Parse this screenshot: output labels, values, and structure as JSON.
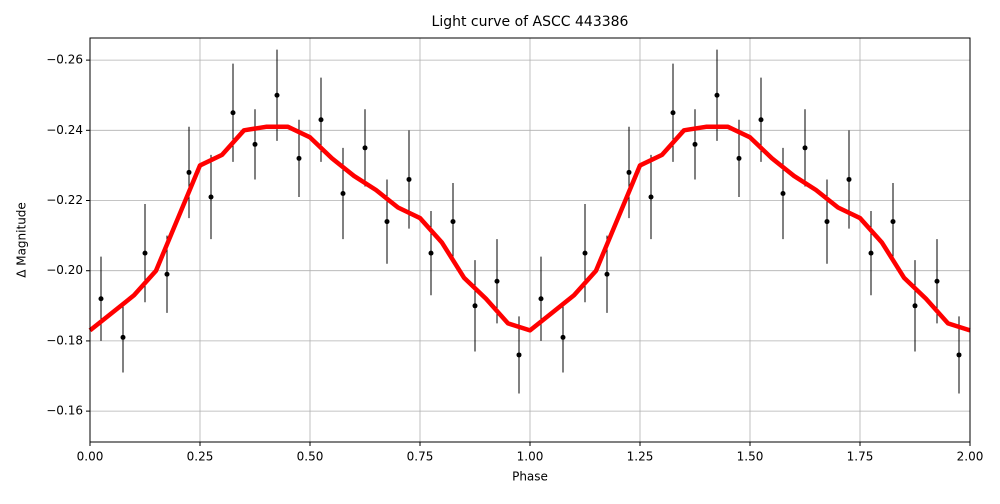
{
  "chart_data": {
    "type": "scatter",
    "title": "Light curve of ASCC 443386",
    "xlabel": "Phase",
    "ylabel": "Δ Magnitude",
    "xlim": [
      0,
      2
    ],
    "xticks": [
      {
        "value": 0,
        "label": "0.00"
      },
      {
        "value": 0.25,
        "label": "0.25"
      },
      {
        "value": 0.5,
        "label": "0.50"
      },
      {
        "value": 0.75,
        "label": "0.75"
      },
      {
        "value": 1,
        "label": "1.00"
      },
      {
        "value": 1.25,
        "label": "1.25"
      },
      {
        "value": 1.5,
        "label": "1.50"
      },
      {
        "value": 1.75,
        "label": "1.75"
      },
      {
        "value": 2,
        "label": "2.00"
      }
    ],
    "ylim": [
      -0.1512,
      -0.2663
    ],
    "y_inverted": true,
    "yticks": [
      {
        "value": -0.26,
        "label": "−0.26"
      },
      {
        "value": -0.24,
        "label": "−0.24"
      },
      {
        "value": -0.22,
        "label": "−0.22"
      },
      {
        "value": -0.2,
        "label": "−0.20"
      },
      {
        "value": -0.18,
        "label": "−0.18"
      },
      {
        "value": -0.16,
        "label": "−0.16"
      }
    ],
    "grid": true,
    "points": {
      "color": "#000000",
      "x": [
        0.025,
        0.075,
        0.125,
        0.175,
        0.225,
        0.275,
        0.325,
        0.375,
        0.425,
        0.475,
        0.525,
        0.575,
        0.625,
        0.675,
        0.725,
        0.775,
        0.825,
        0.875,
        0.925,
        0.975,
        1.025,
        1.075,
        1.125,
        1.175,
        1.225,
        1.275,
        1.325,
        1.375,
        1.425,
        1.475,
        1.525,
        1.575,
        1.625,
        1.675,
        1.725,
        1.775,
        1.825,
        1.875,
        1.925,
        1.975
      ],
      "y": [
        -0.192,
        -0.181,
        -0.205,
        -0.199,
        -0.228,
        -0.221,
        -0.245,
        -0.236,
        -0.25,
        -0.232,
        -0.243,
        -0.222,
        -0.235,
        -0.214,
        -0.226,
        -0.205,
        -0.214,
        -0.19,
        -0.197,
        -0.176,
        -0.192,
        -0.181,
        -0.205,
        -0.199,
        -0.228,
        -0.221,
        -0.245,
        -0.236,
        -0.25,
        -0.232,
        -0.243,
        -0.222,
        -0.235,
        -0.214,
        -0.226,
        -0.205,
        -0.214,
        -0.19,
        -0.197,
        -0.176
      ],
      "err": [
        0.012,
        0.01,
        0.014,
        0.011,
        0.013,
        0.012,
        0.014,
        0.01,
        0.013,
        0.011,
        0.012,
        0.013,
        0.011,
        0.012,
        0.014,
        0.012,
        0.011,
        0.013,
        0.012,
        0.011,
        0.012,
        0.01,
        0.014,
        0.011,
        0.013,
        0.012,
        0.014,
        0.01,
        0.013,
        0.011,
        0.012,
        0.013,
        0.011,
        0.012,
        0.014,
        0.012,
        0.011,
        0.013,
        0.012,
        0.011
      ]
    },
    "fit": {
      "color": "#ff0000",
      "x": [
        0,
        0.05,
        0.1,
        0.15,
        0.2,
        0.25,
        0.3,
        0.35,
        0.4,
        0.45,
        0.5,
        0.55,
        0.6,
        0.65,
        0.7,
        0.75,
        0.8,
        0.85,
        0.9,
        0.95,
        1,
        1.05,
        1.1,
        1.15,
        1.2,
        1.25,
        1.3,
        1.35,
        1.4,
        1.45,
        1.5,
        1.55,
        1.6,
        1.65,
        1.7,
        1.75,
        1.8,
        1.85,
        1.9,
        1.95,
        2
      ],
      "y": [
        -0.183,
        -0.188,
        -0.193,
        -0.2,
        -0.215,
        -0.23,
        -0.233,
        -0.24,
        -0.241,
        -0.241,
        -0.238,
        -0.232,
        -0.227,
        -0.223,
        -0.218,
        -0.215,
        -0.208,
        -0.198,
        -0.192,
        -0.185,
        -0.183,
        -0.188,
        -0.193,
        -0.2,
        -0.215,
        -0.23,
        -0.233,
        -0.24,
        -0.241,
        -0.241,
        -0.238,
        -0.232,
        -0.227,
        -0.223,
        -0.218,
        -0.215,
        -0.208,
        -0.198,
        -0.192,
        -0.185,
        -0.183
      ]
    }
  }
}
